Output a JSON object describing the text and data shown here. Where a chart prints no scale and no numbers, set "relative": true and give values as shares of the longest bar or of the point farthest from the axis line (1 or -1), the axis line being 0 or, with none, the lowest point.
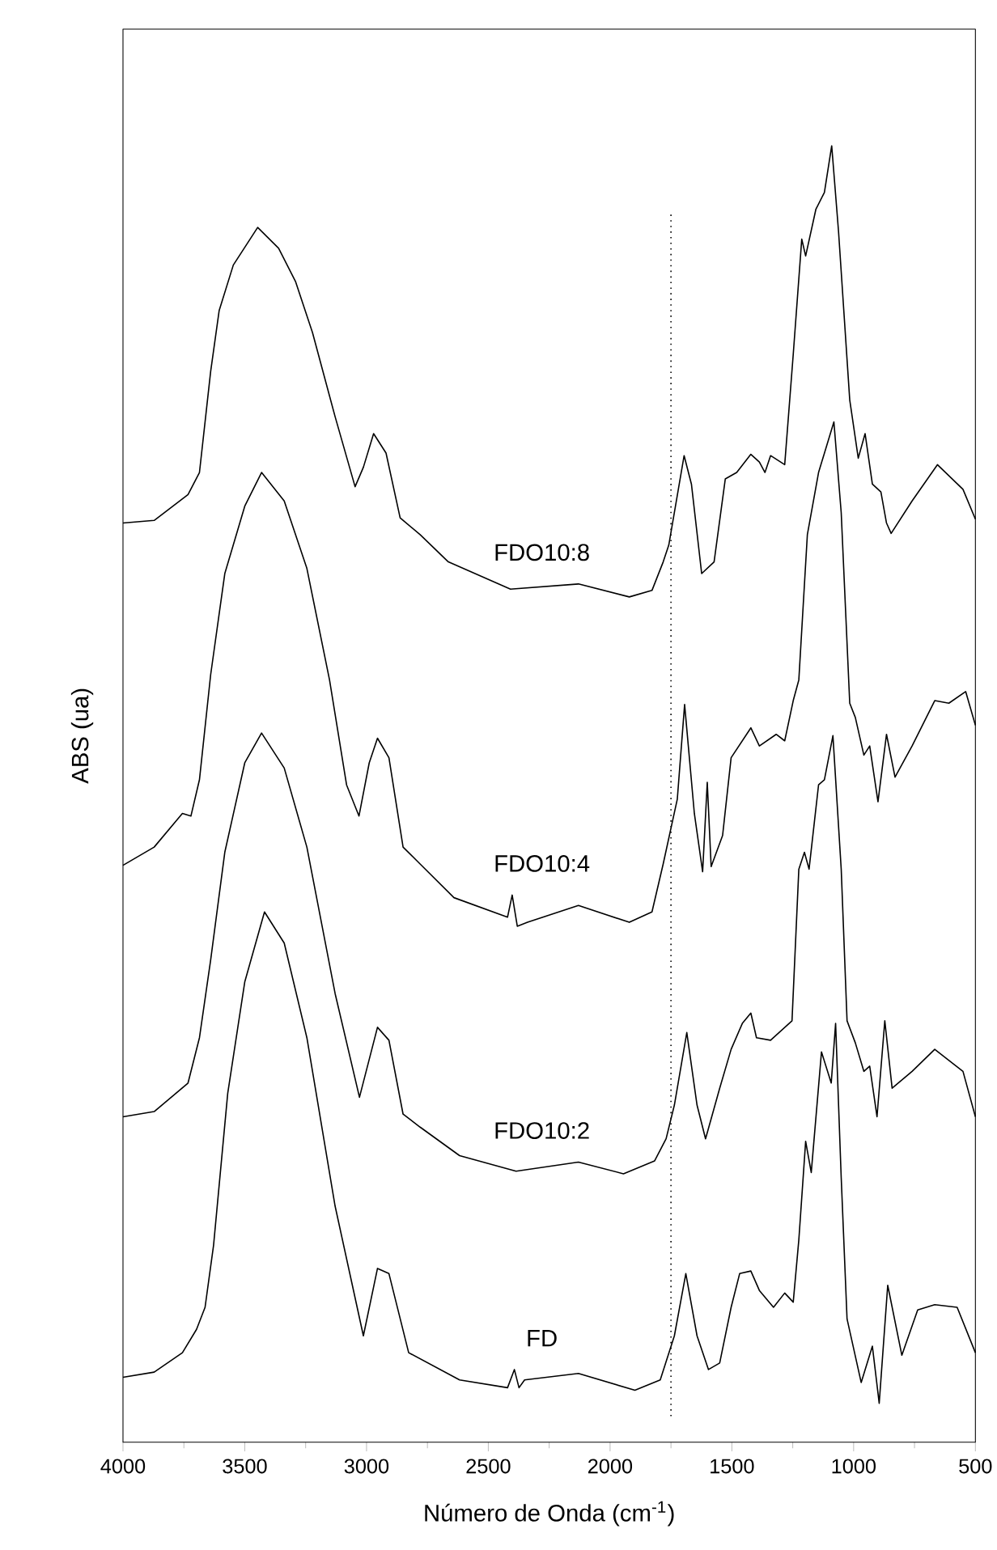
{
  "chart_data": {
    "type": "line",
    "relative": true,
    "xlabel": "Número de Onda (cm$^{-1}$)",
    "ylabel": "ABS (ua)",
    "xlim": [
      4000,
      500
    ],
    "xticks": [
      4000,
      3500,
      3000,
      2500,
      2000,
      1500,
      1000,
      500
    ],
    "ref_lines": [
      {
        "axis": "x",
        "value": 1750,
        "line_style": "dotted",
        "color": "#000000"
      }
    ],
    "series": [
      {
        "name": "FDO10:8",
        "color": "#000000",
        "x": [
          4000,
          3872,
          3733,
          3686,
          3640,
          3605,
          3547,
          3447,
          3361,
          3291,
          3222,
          3129,
          3047,
          3013,
          2971,
          2920,
          2862,
          2780,
          2664,
          2409,
          2130,
          1921,
          1828,
          1782,
          1759,
          1696,
          1666,
          1624,
          1573,
          1527,
          1480,
          1422,
          1387,
          1364,
          1341,
          1283,
          1248,
          1213,
          1197,
          1155,
          1120,
          1090,
          1062,
          1016,
          981,
          953,
          923,
          888,
          865,
          846,
          760,
          656,
          551,
          500
        ],
        "values": [
          0.709,
          0.711,
          0.731,
          0.748,
          0.826,
          0.873,
          0.908,
          0.937,
          0.921,
          0.895,
          0.856,
          0.791,
          0.737,
          0.752,
          0.778,
          0.763,
          0.713,
          0.7,
          0.679,
          0.658,
          0.662,
          0.652,
          0.657,
          0.679,
          0.692,
          0.761,
          0.739,
          0.67,
          0.679,
          0.743,
          0.748,
          0.762,
          0.756,
          0.748,
          0.761,
          0.754,
          0.839,
          0.928,
          0.915,
          0.951,
          0.964,
          1.0,
          0.934,
          0.804,
          0.759,
          0.778,
          0.739,
          0.733,
          0.709,
          0.701,
          0.726,
          0.754,
          0.735,
          0.712
        ]
      },
      {
        "name": "FDO10:4",
        "color": "#000000",
        "x": [
          4000,
          3872,
          3756,
          3721,
          3686,
          3640,
          3582,
          3500,
          3431,
          3338,
          3245,
          3152,
          3082,
          3031,
          2989,
          2955,
          2908,
          2850,
          2780,
          2641,
          2421,
          2402,
          2381,
          2339,
          2130,
          1921,
          1828,
          1782,
          1724,
          1694,
          1654,
          1620,
          1601,
          1585,
          1538,
          1503,
          1422,
          1387,
          1318,
          1283,
          1248,
          1225,
          1190,
          1144,
          1081,
          1051,
          1016,
          993,
          958,
          934,
          900,
          865,
          830,
          760,
          667,
          609,
          540,
          500
        ],
        "values": [
          0.445,
          0.459,
          0.485,
          0.483,
          0.511,
          0.592,
          0.67,
          0.722,
          0.748,
          0.726,
          0.674,
          0.588,
          0.507,
          0.483,
          0.524,
          0.543,
          0.528,
          0.459,
          0.446,
          0.42,
          0.405,
          0.422,
          0.398,
          0.401,
          0.414,
          0.401,
          0.409,
          0.446,
          0.496,
          0.569,
          0.485,
          0.44,
          0.509,
          0.444,
          0.468,
          0.528,
          0.551,
          0.537,
          0.546,
          0.541,
          0.572,
          0.588,
          0.7,
          0.748,
          0.787,
          0.717,
          0.57,
          0.559,
          0.53,
          0.537,
          0.494,
          0.546,
          0.513,
          0.537,
          0.572,
          0.57,
          0.579,
          0.553
        ]
      },
      {
        "name": "FDO10:2",
        "color": "#000000",
        "x": [
          4000,
          3872,
          3733,
          3686,
          3640,
          3582,
          3500,
          3431,
          3338,
          3245,
          3129,
          3029,
          2955,
          2908,
          2850,
          2780,
          2618,
          2386,
          2130,
          1945,
          1817,
          1770,
          1736,
          1685,
          1643,
          1608,
          1550,
          1503,
          1457,
          1422,
          1399,
          1341,
          1253,
          1225,
          1202,
          1183,
          1144,
          1120,
          1085,
          1051,
          1027,
          993,
          958,
          934,
          904,
          872,
          842,
          760,
          667,
          551,
          500
        ],
        "values": [
          0.251,
          0.255,
          0.277,
          0.312,
          0.372,
          0.455,
          0.524,
          0.547,
          0.52,
          0.459,
          0.346,
          0.266,
          0.32,
          0.31,
          0.253,
          0.243,
          0.221,
          0.209,
          0.216,
          0.207,
          0.217,
          0.234,
          0.26,
          0.316,
          0.26,
          0.234,
          0.273,
          0.303,
          0.323,
          0.331,
          0.312,
          0.31,
          0.325,
          0.442,
          0.455,
          0.442,
          0.507,
          0.511,
          0.545,
          0.442,
          0.325,
          0.308,
          0.286,
          0.29,
          0.251,
          0.325,
          0.273,
          0.286,
          0.303,
          0.286,
          0.251
        ]
      },
      {
        "name": "FD",
        "color": "#000000",
        "x": [
          4000,
          3872,
          3756,
          3698,
          3663,
          3628,
          3570,
          3500,
          3419,
          3338,
          3245,
          3129,
          3013,
          2955,
          2908,
          2827,
          2618,
          2421,
          2393,
          2374,
          2351,
          2130,
          1898,
          1794,
          1736,
          1689,
          1643,
          1596,
          1550,
          1503,
          1468,
          1422,
          1387,
          1329,
          1283,
          1248,
          1225,
          1197,
          1174,
          1132,
          1092,
          1074,
          1051,
          1027,
          969,
          923,
          895,
          860,
          802,
          737,
          667,
          575,
          500
        ],
        "values": [
          0.05,
          0.054,
          0.069,
          0.087,
          0.104,
          0.152,
          0.269,
          0.355,
          0.409,
          0.385,
          0.312,
          0.182,
          0.082,
          0.134,
          0.13,
          0.069,
          0.048,
          0.042,
          0.056,
          0.042,
          0.048,
          0.053,
          0.04,
          0.048,
          0.082,
          0.13,
          0.082,
          0.056,
          0.061,
          0.104,
          0.13,
          0.132,
          0.117,
          0.104,
          0.115,
          0.108,
          0.156,
          0.232,
          0.208,
          0.301,
          0.277,
          0.323,
          0.204,
          0.095,
          0.046,
          0.074,
          0.03,
          0.121,
          0.067,
          0.102,
          0.106,
          0.104,
          0.069
        ]
      }
    ]
  }
}
